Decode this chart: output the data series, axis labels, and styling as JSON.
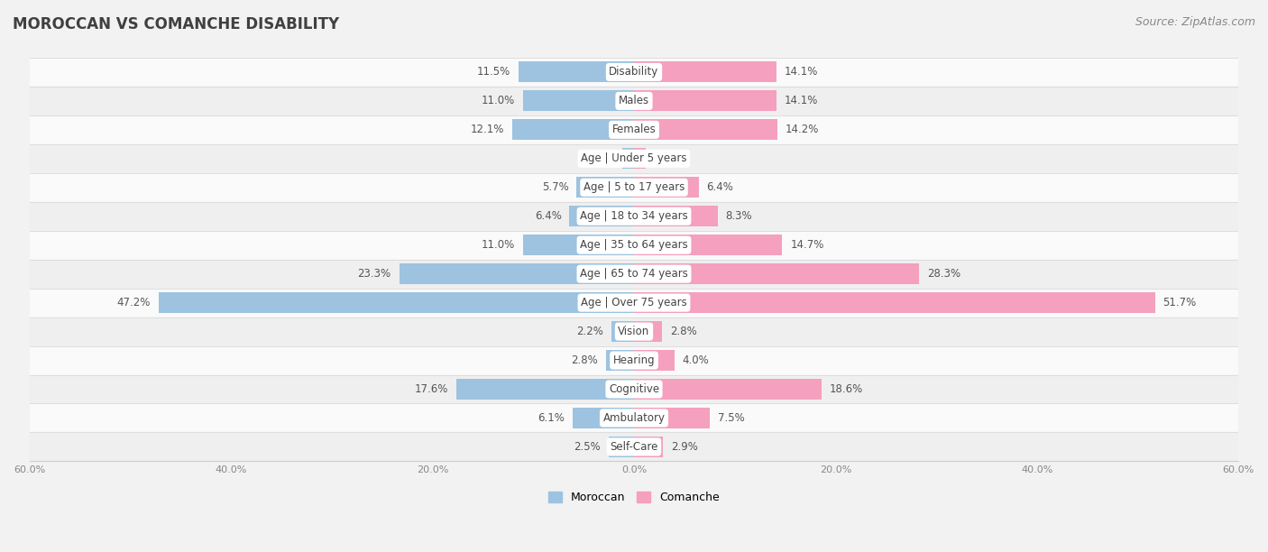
{
  "title": "MOROCCAN VS COMANCHE DISABILITY",
  "source": "Source: ZipAtlas.com",
  "categories": [
    "Disability",
    "Males",
    "Females",
    "Age | Under 5 years",
    "Age | 5 to 17 years",
    "Age | 18 to 34 years",
    "Age | 35 to 64 years",
    "Age | 65 to 74 years",
    "Age | Over 75 years",
    "Vision",
    "Hearing",
    "Cognitive",
    "Ambulatory",
    "Self-Care"
  ],
  "moroccan": [
    11.5,
    11.0,
    12.1,
    1.2,
    5.7,
    6.4,
    11.0,
    23.3,
    47.2,
    2.2,
    2.8,
    17.6,
    6.1,
    2.5
  ],
  "comanche": [
    14.1,
    14.1,
    14.2,
    1.2,
    6.4,
    8.3,
    14.7,
    28.3,
    51.7,
    2.8,
    4.0,
    18.6,
    7.5,
    2.9
  ],
  "moroccan_color": "#9dc3e0",
  "comanche_color": "#f4a0be",
  "background_color": "#f2f2f2",
  "row_colors": [
    "#fafafa",
    "#efefef"
  ],
  "xlim": 60.0,
  "bar_height": 0.72,
  "title_fontsize": 12,
  "label_fontsize": 8.5,
  "value_fontsize": 8.5,
  "legend_fontsize": 9,
  "source_fontsize": 9,
  "tick_fontsize": 8,
  "row_separator_color": "#dddddd",
  "value_color": "#555555",
  "label_text_color": "#444444"
}
